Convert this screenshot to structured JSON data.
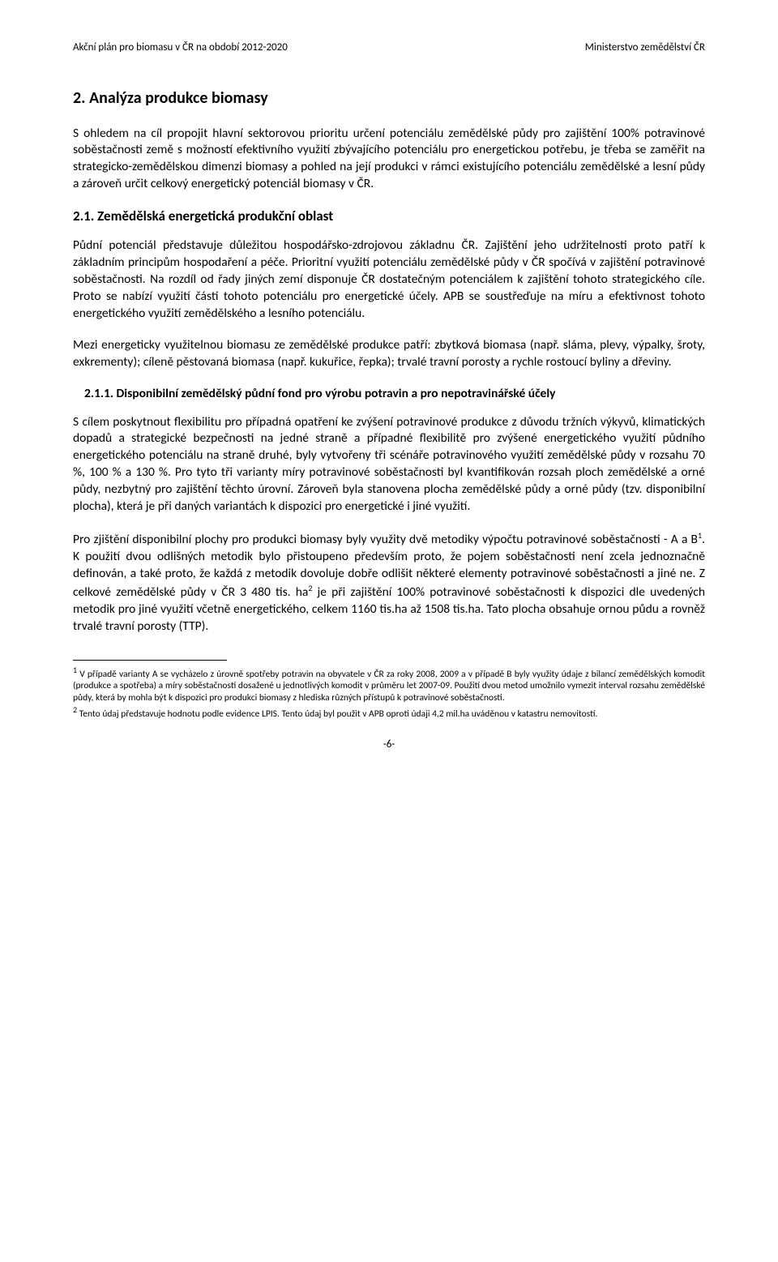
{
  "header": {
    "left": "Akční plán pro biomasu v ČR na období 2012-2020",
    "right": "Ministerstvo zemědělství ČR"
  },
  "sectionHeading": "2. Analýza produkce biomasy",
  "para1": "S ohledem na cíl propojit hlavní sektorovou prioritu určení potenciálu zemědělské půdy pro zajištění 100% potravinové soběstačnosti země s možností efektivního využití zbývajícího potenciálu pro energetickou potřebu, je třeba se zaměřit na strategicko-zemědělskou dimenzi biomasy a pohled na její produkci v rámci existujícího potenciálu zemědělské a lesní půdy a zároveň určit celkový energetický potenciál biomasy v ČR.",
  "subHeading1": "2.1. Zemědělská energetická produkční oblast",
  "para2": "Půdní potenciál představuje důležitou hospodářsko-zdrojovou základnu ČR. Zajištění jeho udržitelnosti proto patří k základním principům hospodaření a péče. Prioritní využití potenciálu zemědělské půdy v ČR spočívá v zajištění potravinové soběstačnosti. Na rozdíl od řady jiných zemí disponuje ČR dostatečným potenciálem k zajištění tohoto strategického cíle. Proto se nabízí využití části tohoto potenciálu pro energetické účely. APB se soustřeďuje na míru a efektivnost tohoto energetického využití zemědělského a lesního potenciálu.",
  "para3": "Mezi energeticky využitelnou biomasu ze zemědělské produkce patří: zbytková biomasa (např. sláma, plevy, výpalky, šroty, exkrementy); cíleně pěstovaná biomasa (např. kukuřice, řepka); trvalé travní porosty a rychle rostoucí byliny a dřeviny.",
  "subsubHeading": "2.1.1. Disponibilní zemědělský půdní fond pro výrobu potravin a pro nepotravinářské účely",
  "para4": "S cílem poskytnout flexibilitu pro případná opatření ke zvýšení potravinové produkce z důvodu tržních výkyvů, klimatických dopadů a strategické bezpečnosti na jedné straně a případné flexibilitě pro zvýšené energetického využití půdního energetického potenciálu na straně druhé, byly vytvořeny tři scénáře potravinového využití zemědělské půdy v rozsahu 70 %, 100 % a 130 %. Pro tyto tři varianty míry potravinové soběstačnosti byl kvantifikován rozsah ploch zemědělské a orné půdy, nezbytný pro zajištění těchto úrovní. Zároveň byla stanovena plocha zemědělské půdy a orné půdy (tzv. disponibilní plocha), která je při daných variantách k dispozici pro energetické i jiné využití.",
  "para5a": "Pro zjištění disponibilní plochy pro produkci biomasy byly využity dvě metodiky výpočtu potravinové soběstačnosti - A a B",
  "para5b": ". K použití dvou odlišných metodik bylo přistoupeno především proto, že pojem soběstačnosti není zcela jednoznačně definován, a také proto, že každá z metodik dovoluje dobře odlišit některé elementy potravinové soběstačnosti a jiné ne.  Z celkové zemědělské půdy v ČR 3 480 tis. ha",
  "para5c": " je při zajištění 100% potravinové soběstačnosti k dispozici dle uvedených metodik pro jiné využití včetně energetického, celkem 1160 tis.ha až 1508 tis.ha. Tato plocha obsahuje ornou půdu a rovněž trvalé travní porosty (TTP).",
  "footnote1a": " V případě varianty A se vycházelo z úrovně spotřeby potravin na obyvatele v ČR za roky 2008, 2009 a v případě B byly využity údaje z bilancí zemědělských komodit (produkce a spotřeba) a míry soběstačnosti dosažené u jednotlivých komodit v průměru let 2007-09. Použití dvou metod umožnilo vymezit interval rozsahu zemědělské půdy, která by mohla být k dispozici pro produkci biomasy z hlediska různých přístupů k potravinové soběstačnosti.",
  "footnote2a": " Tento údaj představuje hodnotu podle evidence LPIS. Tento údaj byl použit v APB oproti údaji 4,2 mil.ha uváděnou v katastru nemovitostí.",
  "pageNumber": "-6-"
}
